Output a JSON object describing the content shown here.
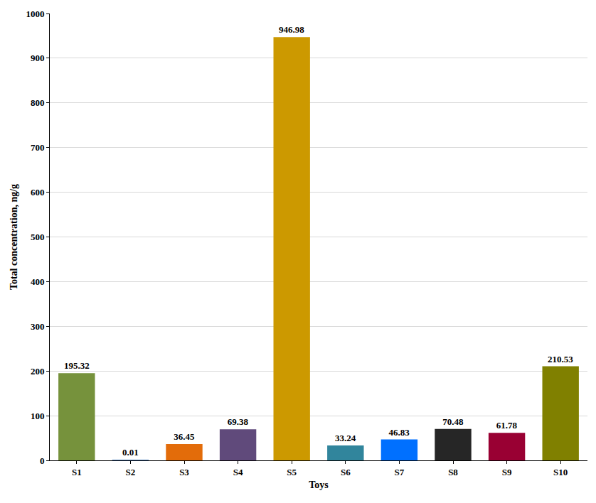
{
  "chart_data": {
    "type": "bar",
    "x_label": "Toys",
    "y_label": "Total concentration, ng/g",
    "categories": [
      "S1",
      "S2",
      "S3",
      "S4",
      "S5",
      "S6",
      "S7",
      "S8",
      "S9",
      "S10"
    ],
    "values": [
      195.32,
      0.01,
      36.45,
      69.38,
      946.98,
      33.24,
      46.83,
      70.48,
      61.78,
      210.53
    ],
    "colors": [
      "#76923c",
      "#4f81bd",
      "#e36c0a",
      "#604a7b",
      "#cc9900",
      "#31859c",
      "#0070ff",
      "#262626",
      "#990033",
      "#808000"
    ],
    "ylim": [
      0,
      1000
    ],
    "yticks": [
      0,
      100,
      200,
      300,
      400,
      500,
      600,
      700,
      800,
      900,
      1000
    ],
    "grid": true,
    "data_labels": true
  }
}
